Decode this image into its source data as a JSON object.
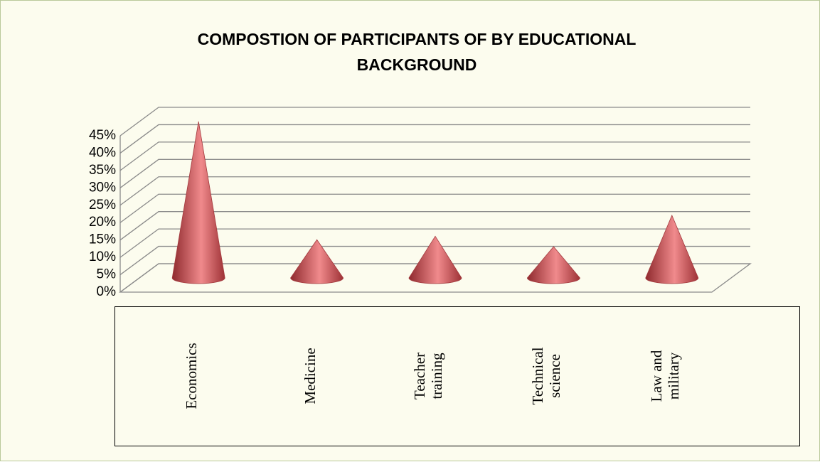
{
  "chart_data": {
    "type": "cone",
    "title": "COMPOSTION OF PARTICIPANTS OF BY EDUCATIONAL BACKGROUND",
    "categories": [
      "Economics",
      "Medicine",
      "Teacher training",
      "Technical science",
      "Law and military"
    ],
    "values": [
      45,
      11,
      12,
      9,
      18
    ],
    "color": "#d9575b",
    "ylim": [
      0,
      45
    ],
    "yticks": [
      {
        "value": 0,
        "label": "0%"
      },
      {
        "value": 5,
        "label": "5%"
      },
      {
        "value": 10,
        "label": "10%"
      },
      {
        "value": 15,
        "label": "15%"
      },
      {
        "value": 20,
        "label": "20%"
      },
      {
        "value": 25,
        "label": "25%"
      },
      {
        "value": 30,
        "label": "30%"
      },
      {
        "value": 35,
        "label": "35%"
      },
      {
        "value": 40,
        "label": "40%"
      },
      {
        "value": 45,
        "label": "45%"
      }
    ],
    "grid": true
  }
}
